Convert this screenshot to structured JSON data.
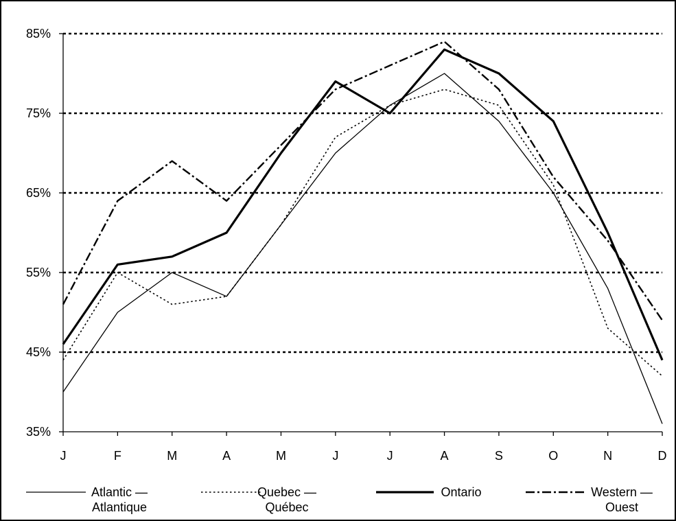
{
  "chart_data": {
    "type": "line",
    "title": "",
    "xlabel": "",
    "ylabel": "",
    "categories": [
      "J",
      "F",
      "M",
      "A",
      "M",
      "J",
      "J",
      "A",
      "S",
      "O",
      "N",
      "D"
    ],
    "y_ticks": [
      "35%",
      "45%",
      "55%",
      "65%",
      "75%",
      "85%"
    ],
    "ylim": [
      35,
      85
    ],
    "grid": "horizontal dotted at 45%, 55%, 65%, 75%, 85%",
    "legend_position": "bottom",
    "series": [
      {
        "key": "atlantic",
        "name": "Atlantic — Atlantique",
        "legend_lines": [
          "Atlantic —",
          "Atlantique"
        ],
        "style": "thin-solid",
        "values": [
          40,
          50,
          55,
          52,
          61,
          70,
          76,
          80,
          74,
          65,
          53,
          36
        ]
      },
      {
        "key": "quebec",
        "name": "Quebec — Québec",
        "legend_lines": [
          "Quebec —",
          "Québec"
        ],
        "style": "dotted",
        "values": [
          44,
          55,
          51,
          52,
          61,
          72,
          76,
          78,
          76,
          66,
          48,
          42
        ]
      },
      {
        "key": "ontario",
        "name": "Ontario",
        "legend_lines": [
          "Ontario"
        ],
        "style": "thick-solid",
        "values": [
          46,
          56,
          57,
          60,
          70,
          79,
          75,
          83,
          80,
          74,
          60,
          44
        ]
      },
      {
        "key": "western",
        "name": "Western — Ouest",
        "legend_lines": [
          "Western —",
          "Ouest"
        ],
        "style": "dash-dot",
        "values": [
          51,
          64,
          69,
          64,
          71,
          78,
          81,
          84,
          78,
          67,
          59,
          49
        ]
      }
    ]
  }
}
